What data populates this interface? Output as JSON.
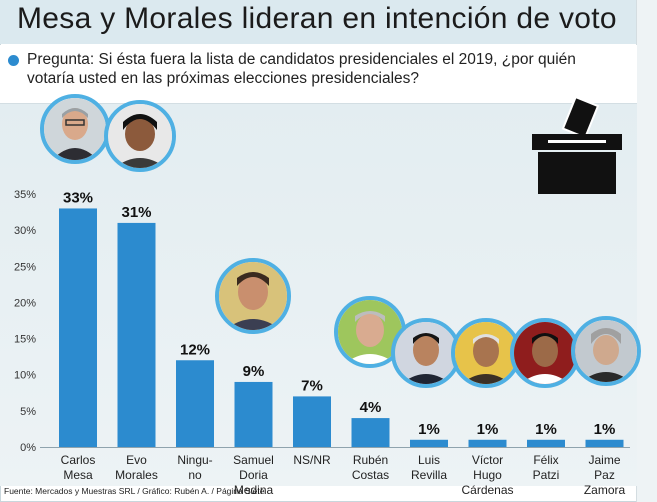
{
  "header": {
    "title": "Mesa y Morales lideran en intención de voto",
    "question": "Pregunta: Si ésta fuera la lista de candidatos presidenciales el 2019, ¿por quién votaría usted en las próximas elecciones presidenciales?"
  },
  "footer": {
    "source": "Fuente: Mercados y Muestras SRL / Gráfico: Rubén A. / Página Siete"
  },
  "colors": {
    "bar": "#2c8bcf",
    "photo_ring": "#4fb0e3",
    "background": "#e3edf1"
  },
  "icons": [
    "ballot-box-icon",
    "bullet-dot-icon"
  ],
  "chart_data": {
    "type": "bar",
    "title": "Mesa y Morales lideran en intención de voto",
    "xlabel": "",
    "ylabel": "",
    "ylim": [
      0,
      35
    ],
    "yticks": [
      "0%",
      "5%",
      "10%",
      "15%",
      "20%",
      "25%",
      "30%",
      "35%"
    ],
    "grid": false,
    "categories": [
      [
        "Carlos",
        "Mesa"
      ],
      [
        "Evo",
        "Morales"
      ],
      [
        "Ningu-",
        "no"
      ],
      [
        "Samuel",
        "Doria",
        "Medina"
      ],
      [
        "NS/NR"
      ],
      [
        "Rubén",
        "Costas"
      ],
      [
        "Luis",
        "Revilla"
      ],
      [
        "Víctor",
        "Hugo",
        "Cárdenas"
      ],
      [
        "Félix",
        "Patzi"
      ],
      [
        "Jaime",
        "Paz",
        "Zamora"
      ]
    ],
    "values": [
      33,
      31,
      12,
      9,
      7,
      4,
      1,
      1,
      1,
      1
    ],
    "labels": [
      "33%",
      "31%",
      "12%",
      "9%",
      "7%",
      "4%",
      "1%",
      "1%",
      "1%",
      "1%"
    ]
  }
}
